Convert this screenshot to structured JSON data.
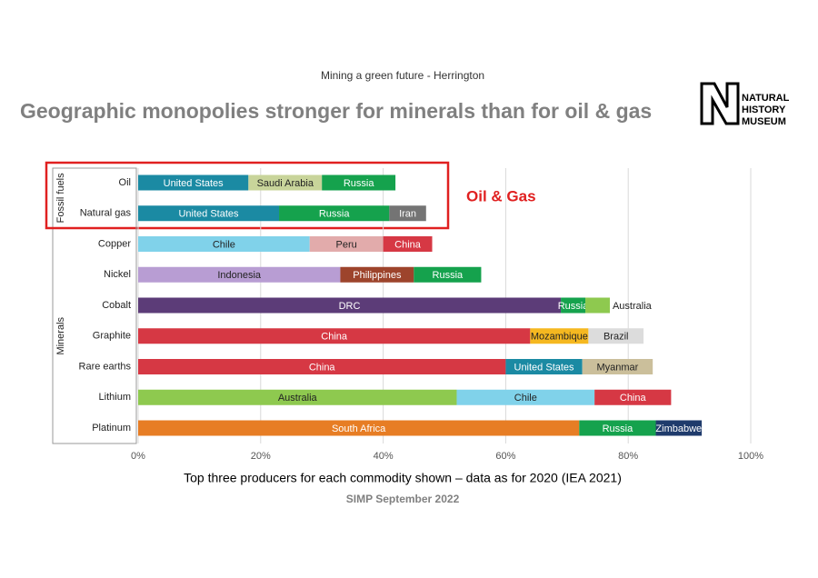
{
  "header": "Mining a green future - Herrington",
  "logo": [
    "NATURAL",
    "HISTORY",
    "MUSEUM"
  ],
  "chart_data": {
    "type": "bar",
    "orientation": "horizontal",
    "stacked": true,
    "title": "Geographic monopolies stronger for minerals than for oil & gas",
    "annotation": "Oil & Gas",
    "caption": "Top three producers for each commodity shown – data as for 2020  (IEA 2021)",
    "footer": "SIMP September 2022",
    "xlim": [
      0,
      100
    ],
    "xticks": [
      {
        "value": 0,
        "label": "0%"
      },
      {
        "value": 20,
        "label": "20%"
      },
      {
        "value": 40,
        "label": "40%"
      },
      {
        "value": 60,
        "label": "60%"
      },
      {
        "value": 80,
        "label": "80%"
      },
      {
        "value": 100,
        "label": "100%"
      }
    ],
    "grid": true,
    "groups": [
      {
        "name": "Fossil fuels",
        "rows": [
          {
            "name": "Oil",
            "segments": [
              {
                "name": "United States",
                "color": "#1b8aa3",
                "value": 18
              },
              {
                "name": "Saudi Arabia",
                "color": "#c8d49a",
                "value": 12
              },
              {
                "name": "Russia",
                "color": "#15a24d",
                "value": 12
              }
            ]
          },
          {
            "name": "Natural gas",
            "segments": [
              {
                "name": "United States",
                "color": "#1b8aa3",
                "value": 23
              },
              {
                "name": "Russia",
                "color": "#15a24d",
                "value": 18
              },
              {
                "name": "Iran",
                "color": "#747474",
                "value": 6
              }
            ]
          }
        ]
      },
      {
        "name": "Minerals",
        "rows": [
          {
            "name": "Copper",
            "segments": [
              {
                "name": "Chile",
                "color": "#80d2ea",
                "value": 28
              },
              {
                "name": "Peru",
                "color": "#e2abab",
                "value": 12
              },
              {
                "name": "China",
                "color": "#d63844",
                "value": 8
              }
            ]
          },
          {
            "name": "Nickel",
            "segments": [
              {
                "name": "Indonesia",
                "color": "#b89dd3",
                "value": 33
              },
              {
                "name": "Philippines",
                "color": "#9d442c",
                "value": 12
              },
              {
                "name": "Russia",
                "color": "#15a24d",
                "value": 11
              }
            ]
          },
          {
            "name": "Cobalt",
            "segments": [
              {
                "name": "DRC",
                "color": "#5c3c78",
                "value": 69
              },
              {
                "name": "Russia",
                "color": "#15a24d",
                "value": 4
              },
              {
                "name": "Australia",
                "color": "#8ec94f",
                "value": 4
              }
            ]
          },
          {
            "name": "Graphite",
            "segments": [
              {
                "name": "China",
                "color": "#d63844",
                "value": 64
              },
              {
                "name": "Mozambique",
                "color": "#f5b820",
                "value": 9.5
              },
              {
                "name": "Brazil",
                "color": "#dcdcdc",
                "value": 9
              }
            ]
          },
          {
            "name": "Rare earths",
            "segments": [
              {
                "name": "China",
                "color": "#d63844",
                "value": 60
              },
              {
                "name": "United States",
                "color": "#1b8aa3",
                "value": 12.5
              },
              {
                "name": "Myanmar",
                "color": "#cbbf9b",
                "value": 11.5
              }
            ]
          },
          {
            "name": "Lithium",
            "segments": [
              {
                "name": "Australia",
                "color": "#8ec94f",
                "value": 52
              },
              {
                "name": "Chile",
                "color": "#80d2ea",
                "value": 22.5
              },
              {
                "name": "China",
                "color": "#d63844",
                "value": 12.5
              }
            ]
          },
          {
            "name": "Platinum",
            "segments": [
              {
                "name": "South Africa",
                "color": "#e77d24",
                "value": 72
              },
              {
                "name": "Russia",
                "color": "#15a24d",
                "value": 12.5
              },
              {
                "name": "Zimbabwe",
                "color": "#1f3b6c",
                "value": 7.5
              }
            ]
          }
        ]
      }
    ]
  }
}
